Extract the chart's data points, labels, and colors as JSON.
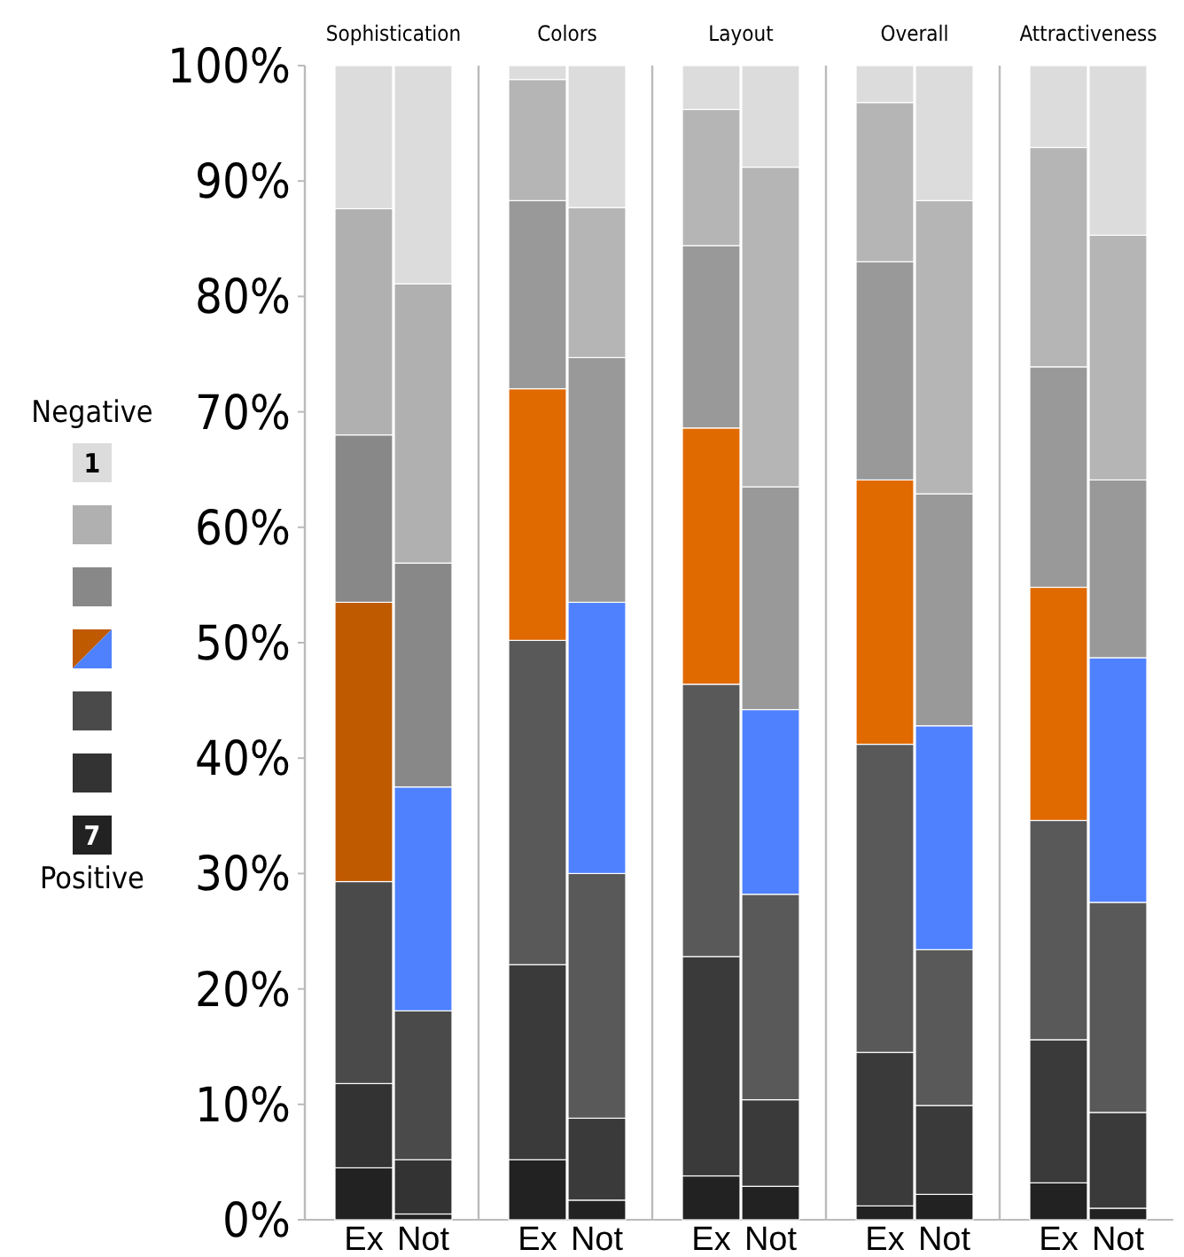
{
  "chart_data": [
    {
      "type": "bar",
      "title": "Sophistication",
      "categories": [
        "Ex",
        "Not"
      ],
      "stacked": true,
      "ylim": [
        0,
        100
      ],
      "yticks": [
        {
          "value": 0,
          "label": "0%"
        },
        {
          "value": 10,
          "label": "10%"
        },
        {
          "value": 20,
          "label": "20%"
        },
        {
          "value": 30,
          "label": "30%"
        },
        {
          "value": 40,
          "label": "40%"
        },
        {
          "value": 50,
          "label": "50%"
        },
        {
          "value": 60,
          "label": "60%"
        },
        {
          "value": 70,
          "label": "70%"
        },
        {
          "value": 80,
          "label": "80%"
        },
        {
          "value": 90,
          "label": "90%"
        },
        {
          "value": 100,
          "label": "100%"
        }
      ],
      "legend": "left",
      "legend_title": "Negative",
      "annotations": [
        "Positive"
      ],
      "series": [
        {
          "name": "7",
          "color": "#222222",
          "values": [
            4.5,
            0.5
          ]
        },
        {
          "color": "#333333",
          "values": [
            7.3,
            4.7
          ]
        },
        {
          "color": "#4a4a4a",
          "values": [
            17.5,
            12.9
          ]
        },
        {
          "colors": [
            "#c05a00",
            "#4f81ff"
          ],
          "values": [
            24.2,
            19.4
          ]
        },
        {
          "color": "#888888",
          "values": [
            14.5,
            19.4
          ]
        },
        {
          "color": "#b0b0b0",
          "values": [
            19.6,
            24.2
          ]
        },
        {
          "name": "1",
          "color": "#dcdcdc",
          "values": [
            12.4,
            18.9
          ]
        }
      ]
    },
    {
      "type": "bar",
      "title": "Colors",
      "categories": [
        "Ex",
        "Not"
      ],
      "stacked": true,
      "tick_labels": "x",
      "ylim": [
        0,
        100
      ],
      "series": [
        {
          "color": "#222222",
          "values": [
            5.2,
            1.7
          ]
        },
        {
          "color": "#3a3a3a",
          "values": [
            16.9,
            7.1
          ]
        },
        {
          "color": "#595959",
          "values": [
            28.1,
            21.2
          ]
        },
        {
          "colors": [
            "#e06900",
            "#4f81ff"
          ],
          "values": [
            21.8,
            23.5
          ]
        },
        {
          "color": "#999999",
          "values": [
            16.3,
            21.2
          ]
        },
        {
          "color": "#b5b5b5",
          "values": [
            10.5,
            13.0
          ]
        },
        {
          "color": "#dcdcdc",
          "values": [
            1.2,
            12.3
          ]
        }
      ]
    },
    {
      "type": "bar",
      "title": "Layout",
      "categories": [
        "Ex",
        "Not"
      ],
      "stacked": true,
      "tick_labels": "x",
      "ylim": [
        0,
        100
      ],
      "series": [
        {
          "color": "#222222",
          "values": [
            3.8,
            2.9
          ]
        },
        {
          "color": "#3a3a3a",
          "values": [
            19.0,
            7.5
          ]
        },
        {
          "color": "#595959",
          "values": [
            23.6,
            17.8
          ]
        },
        {
          "colors": [
            "#e06900",
            "#4f81ff"
          ],
          "values": [
            22.2,
            16.0
          ]
        },
        {
          "color": "#999999",
          "values": [
            15.8,
            19.3
          ]
        },
        {
          "color": "#b5b5b5",
          "values": [
            11.8,
            27.7
          ]
        },
        {
          "color": "#dcdcdc",
          "values": [
            3.8,
            8.8
          ]
        }
      ]
    },
    {
      "type": "bar",
      "title": "Overall",
      "categories": [
        "Ex",
        "Not"
      ],
      "stacked": true,
      "tick_labels": "x",
      "ylim": [
        0,
        100
      ],
      "series": [
        {
          "color": "#222222",
          "values": [
            1.2,
            2.2
          ]
        },
        {
          "color": "#3a3a3a",
          "values": [
            13.3,
            7.7
          ]
        },
        {
          "color": "#595959",
          "values": [
            26.7,
            13.5
          ]
        },
        {
          "colors": [
            "#e06900",
            "#4f81ff"
          ],
          "values": [
            22.9,
            19.4
          ]
        },
        {
          "color": "#999999",
          "values": [
            18.9,
            20.1
          ]
        },
        {
          "color": "#b5b5b5",
          "values": [
            13.8,
            25.4
          ]
        },
        {
          "color": "#dcdcdc",
          "values": [
            3.2,
            11.7
          ]
        }
      ]
    },
    {
      "type": "bar",
      "title": "Attractiveness",
      "categories": [
        "Ex",
        "Not"
      ],
      "stacked": true,
      "tick_labels": "x",
      "ylim": [
        0,
        100
      ],
      "series": [
        {
          "color": "#222222",
          "values": [
            3.2,
            1.0
          ]
        },
        {
          "color": "#3a3a3a",
          "values": [
            12.4,
            8.3
          ]
        },
        {
          "color": "#595959",
          "values": [
            19.0,
            18.2
          ]
        },
        {
          "colors": [
            "#e06900",
            "#4f81ff"
          ],
          "values": [
            20.2,
            21.2
          ]
        },
        {
          "color": "#999999",
          "values": [
            19.1,
            15.4
          ]
        },
        {
          "color": "#b5b5b5",
          "values": [
            19.0,
            21.2
          ]
        },
        {
          "color": "#dcdcdc",
          "values": [
            7.1,
            14.7
          ]
        }
      ]
    }
  ]
}
